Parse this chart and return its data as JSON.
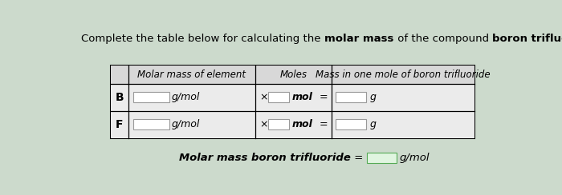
{
  "bg_color": "#ccdacc",
  "table_bg": "#e8e8e8",
  "input_box_color": "#ffffff",
  "header_col1": "Molar mass of element",
  "header_col2": "Moles",
  "header_col3": "Mass in one mole of boron trifluoride",
  "elements": [
    "B",
    "F"
  ],
  "unit1": "g/mol",
  "times": "×",
  "unit2": "mol",
  "eq": "=",
  "unit3": "g",
  "footer_text": "Molar mass boron trifluoride",
  "footer_eq": "=",
  "footer_unit": "g/mol",
  "font_size_title": 9.5,
  "font_size_header": 8.5,
  "font_size_row": 9.0,
  "font_size_footer": 9.5
}
